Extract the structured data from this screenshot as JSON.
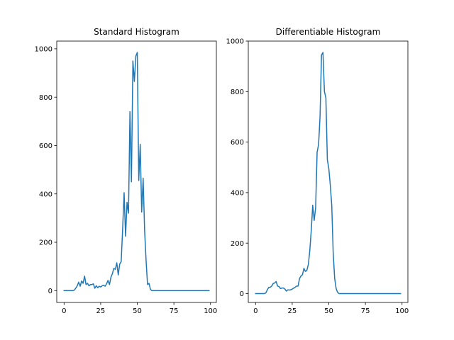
{
  "chart_data": [
    {
      "type": "line",
      "title": "Standard Histogram",
      "xlim": [
        -5,
        104
      ],
      "ylim": [
        -49,
        1032
      ],
      "xticks": [
        0,
        25,
        50,
        75,
        100
      ],
      "yticks": [
        0,
        200,
        400,
        600,
        800,
        1000
      ],
      "color": "#1f77b4",
      "series": [
        {
          "x": [
            0,
            1,
            2,
            3,
            4,
            5,
            6,
            7,
            8,
            9,
            10,
            11,
            12,
            13,
            14,
            15,
            16,
            17,
            18,
            19,
            20,
            21,
            22,
            23,
            24,
            25,
            26,
            27,
            28,
            29,
            30,
            31,
            32,
            33,
            34,
            35,
            36,
            37,
            38,
            39,
            40,
            41,
            42,
            43,
            44,
            45,
            46,
            47,
            48,
            49,
            50,
            51,
            52,
            53,
            54,
            55,
            56,
            57,
            58,
            59,
            60,
            61,
            62,
            63,
            64,
            65,
            66,
            67,
            68,
            69,
            70,
            71,
            72,
            73,
            74,
            75,
            76,
            77,
            78,
            79,
            80,
            81,
            82,
            83,
            84,
            85,
            86,
            87,
            88,
            89,
            90,
            91,
            92,
            93,
            94,
            95,
            96,
            97,
            98,
            99
          ],
          "y": [
            0,
            0,
            0,
            0,
            0,
            0,
            0,
            2,
            10,
            20,
            35,
            18,
            40,
            30,
            60,
            25,
            30,
            20,
            25,
            25,
            28,
            10,
            20,
            12,
            18,
            15,
            20,
            22,
            18,
            28,
            42,
            25,
            55,
            70,
            92,
            88,
            115,
            65,
            110,
            120,
            255,
            405,
            225,
            365,
            320,
            740,
            450,
            950,
            865,
            970,
            985,
            455,
            605,
            325,
            465,
            250,
            125,
            25,
            30,
            5,
            0,
            0,
            0,
            0,
            0,
            0,
            0,
            0,
            0,
            0,
            0,
            0,
            0,
            0,
            0,
            0,
            0,
            0,
            0,
            0,
            0,
            0,
            0,
            0,
            0,
            0,
            0,
            0,
            0,
            0,
            0,
            0,
            0,
            0,
            0,
            0,
            0,
            0,
            0,
            0
          ]
        }
      ]
    },
    {
      "type": "line",
      "title": "Differentiable Histogram",
      "xlim": [
        -5,
        104
      ],
      "ylim": [
        -35,
        1000
      ],
      "xticks": [
        0,
        25,
        50,
        75,
        100
      ],
      "yticks": [
        0,
        200,
        400,
        600,
        800,
        1000
      ],
      "color": "#1f77b4",
      "series": [
        {
          "x": [
            0,
            1,
            2,
            3,
            4,
            5,
            6,
            7,
            8,
            9,
            10,
            11,
            12,
            13,
            14,
            15,
            16,
            17,
            18,
            19,
            20,
            21,
            22,
            23,
            24,
            25,
            26,
            27,
            28,
            29,
            30,
            31,
            32,
            33,
            34,
            35,
            36,
            37,
            38,
            39,
            40,
            41,
            42,
            43,
            44,
            45,
            46,
            47,
            48,
            49,
            50,
            51,
            52,
            53,
            54,
            55,
            56,
            57,
            58,
            59,
            60,
            61,
            62,
            63,
            64,
            65,
            66,
            67,
            68,
            69,
            70,
            71,
            72,
            73,
            74,
            75,
            76,
            77,
            78,
            79,
            80,
            81,
            82,
            83,
            84,
            85,
            86,
            87,
            88,
            89,
            90,
            91,
            92,
            93,
            94,
            95,
            96,
            97,
            98,
            99
          ],
          "y": [
            0,
            0,
            0,
            0,
            0,
            0,
            0,
            3,
            15,
            25,
            25,
            30,
            40,
            42,
            48,
            30,
            28,
            20,
            22,
            22,
            18,
            10,
            15,
            14,
            15,
            18,
            22,
            25,
            30,
            30,
            60,
            70,
            75,
            100,
            88,
            92,
            115,
            170,
            250,
            350,
            290,
            340,
            560,
            590,
            700,
            945,
            955,
            800,
            775,
            530,
            495,
            430,
            350,
            160,
            60,
            20,
            5,
            0,
            0,
            0,
            0,
            0,
            0,
            0,
            0,
            0,
            0,
            0,
            0,
            0,
            0,
            0,
            0,
            0,
            0,
            0,
            0,
            0,
            0,
            0,
            0,
            0,
            0,
            0,
            0,
            0,
            0,
            0,
            0,
            0,
            0,
            0,
            0,
            0,
            0,
            0,
            0,
            0,
            0,
            0
          ]
        }
      ]
    }
  ]
}
